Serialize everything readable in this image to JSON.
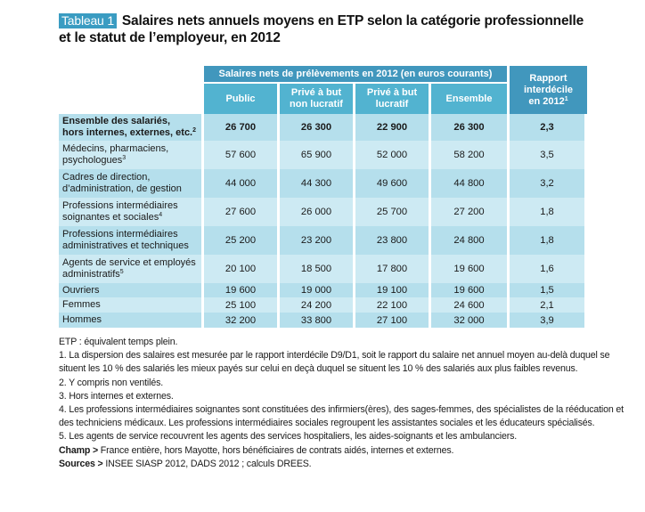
{
  "title": {
    "badge": "Tableau 1",
    "line1": "Salaires nets annuels moyens en ETP selon la catégorie professionnelle",
    "line2": "et le statut de l’employeur, en 2012"
  },
  "table": {
    "group_header": "Salaires nets de prélèvements en 2012 (en euros courants)",
    "columns": [
      "Public",
      "Privé à but non lucratif",
      "Privé à but lucratif",
      "Ensemble"
    ],
    "col_lines": [
      [
        "Public"
      ],
      [
        "Privé à but",
        "non lucratif"
      ],
      [
        "Privé à but",
        "lucratif"
      ],
      [
        "Ensemble"
      ]
    ],
    "ratio_header": [
      "Rapport",
      "interdécile",
      "en 2012"
    ],
    "ratio_sup": "1",
    "rows": [
      {
        "label": [
          "Ensemble des salariés,",
          "hors internes, externes, etc."
        ],
        "sup": "2",
        "values": [
          "26 700",
          "26 300",
          "22 900",
          "26 300",
          "2,3"
        ]
      },
      {
        "label": [
          "Médecins, pharmaciens,",
          "psychologues"
        ],
        "sup": "3",
        "values": [
          "57 600",
          "65 900",
          "52 000",
          "58 200",
          "3,5"
        ]
      },
      {
        "label": [
          "Cadres de direction,",
          "d’administration, de gestion"
        ],
        "sup": "",
        "values": [
          "44 000",
          "44 300",
          "49 600",
          "44 800",
          "3,2"
        ]
      },
      {
        "label": [
          "Professions intermédiaires",
          "soignantes et sociales"
        ],
        "sup": "4",
        "values": [
          "27 600",
          "26 000",
          "25 700",
          "27 200",
          "1,8"
        ]
      },
      {
        "label": [
          "Professions intermédiaires",
          "administratives et techniques"
        ],
        "sup": "",
        "values": [
          "25 200",
          "23 200",
          "23 800",
          "24 800",
          "1,8"
        ]
      },
      {
        "label": [
          "Agents de service et employés",
          "administratifs"
        ],
        "sup": "5",
        "values": [
          "20 100",
          "18 500",
          "17 800",
          "19 600",
          "1,6"
        ]
      },
      {
        "label": [
          "Ouvriers"
        ],
        "sup": "",
        "values": [
          "19 600",
          "19 000",
          "19 100",
          "19 600",
          "1,5"
        ]
      },
      {
        "label": [
          "Femmes"
        ],
        "sup": "",
        "values": [
          "25 100",
          "24 200",
          "22 100",
          "24 600",
          "2,1"
        ]
      },
      {
        "label": [
          "Hommes"
        ],
        "sup": "",
        "values": [
          "32 200",
          "33 800",
          "27 100",
          "32 000",
          "3,9"
        ]
      }
    ]
  },
  "notes": {
    "etp": "ETP : équivalent temps plein.",
    "n1": "1. La dispersion des salaires est mesurée par le rapport interdécile D9/D1, soit le rapport du salaire net annuel moyen au-delà duquel se situent les 10 % des salariés les mieux payés sur celui en deçà duquel se situent les 10 % des salariés aux plus faibles revenus.",
    "n2": "2. Y compris non ventilés.",
    "n3": "3. Hors internes et externes.",
    "n4": "4. Les professions intermédiaires soignantes sont constituées des infirmiers(ères), des sages-femmes, des spécialistes de la rééducation et des techniciens médicaux. Les professions intermédiaires sociales regroupent les assistantes sociales et les éducateurs spécialisés.",
    "n5": "5. Les agents de service recouvrent les agents des services hospitaliers, les aides-soignants et les ambulanciers.",
    "champ_label": "Champ >",
    "champ_text": " France entière, hors Mayotte, hors bénéficiaires de contrats aidés, internes et externes.",
    "sources_label": "Sources >",
    "sources_text": " INSEE SIASP 2012, DADS 2012 ; calculs DREES."
  },
  "colors": {
    "badge": "#3a9cc2",
    "header_dark": "#4197bd",
    "header_light": "#52b3d0",
    "row_a": "#b5dfec",
    "row_b": "#cdeaf3"
  }
}
